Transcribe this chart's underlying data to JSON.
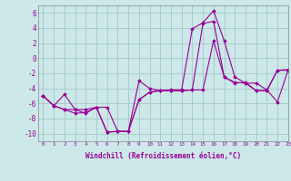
{
  "xlabel": "Windchill (Refroidissement éolien,°C)",
  "ylabel": "",
  "xlim": [
    -0.5,
    23
  ],
  "ylim": [
    -11,
    7
  ],
  "yticks": [
    -10,
    -8,
    -6,
    -4,
    -2,
    0,
    2,
    4,
    6
  ],
  "xticks": [
    0,
    1,
    2,
    3,
    4,
    5,
    6,
    7,
    8,
    9,
    10,
    11,
    12,
    13,
    14,
    15,
    16,
    17,
    18,
    19,
    20,
    21,
    22,
    23
  ],
  "background_color": "#cce8e8",
  "grid_color": "#aacccc",
  "line_color": "#990099",
  "series": [
    [
      -5.0,
      -6.3,
      -4.8,
      -6.8,
      -6.8,
      -6.5,
      -9.8,
      -9.7,
      -9.7,
      -3.0,
      -4.0,
      -4.3,
      -4.2,
      -4.2,
      3.9,
      4.7,
      6.3,
      2.3,
      -2.5,
      -3.3,
      -3.3,
      -4.2,
      -5.8,
      -1.6
    ],
    [
      -5.0,
      -6.3,
      -6.8,
      -6.8,
      -7.3,
      -6.5,
      -6.5,
      -9.7,
      -9.7,
      -5.5,
      -4.5,
      -4.3,
      -4.3,
      -4.3,
      -4.2,
      4.6,
      4.9,
      -2.5,
      -3.3,
      -3.2,
      -4.3,
      -4.3,
      -1.6,
      -1.6
    ],
    [
      -5.0,
      -6.3,
      -6.8,
      -7.3,
      -7.2,
      -6.5,
      -9.8,
      -9.7,
      -9.7,
      -5.5,
      -4.5,
      -4.3,
      -4.3,
      -4.3,
      -4.2,
      -4.2,
      2.3,
      -2.5,
      -3.2,
      -3.3,
      -4.3,
      -4.3,
      -1.6,
      -1.5
    ]
  ]
}
